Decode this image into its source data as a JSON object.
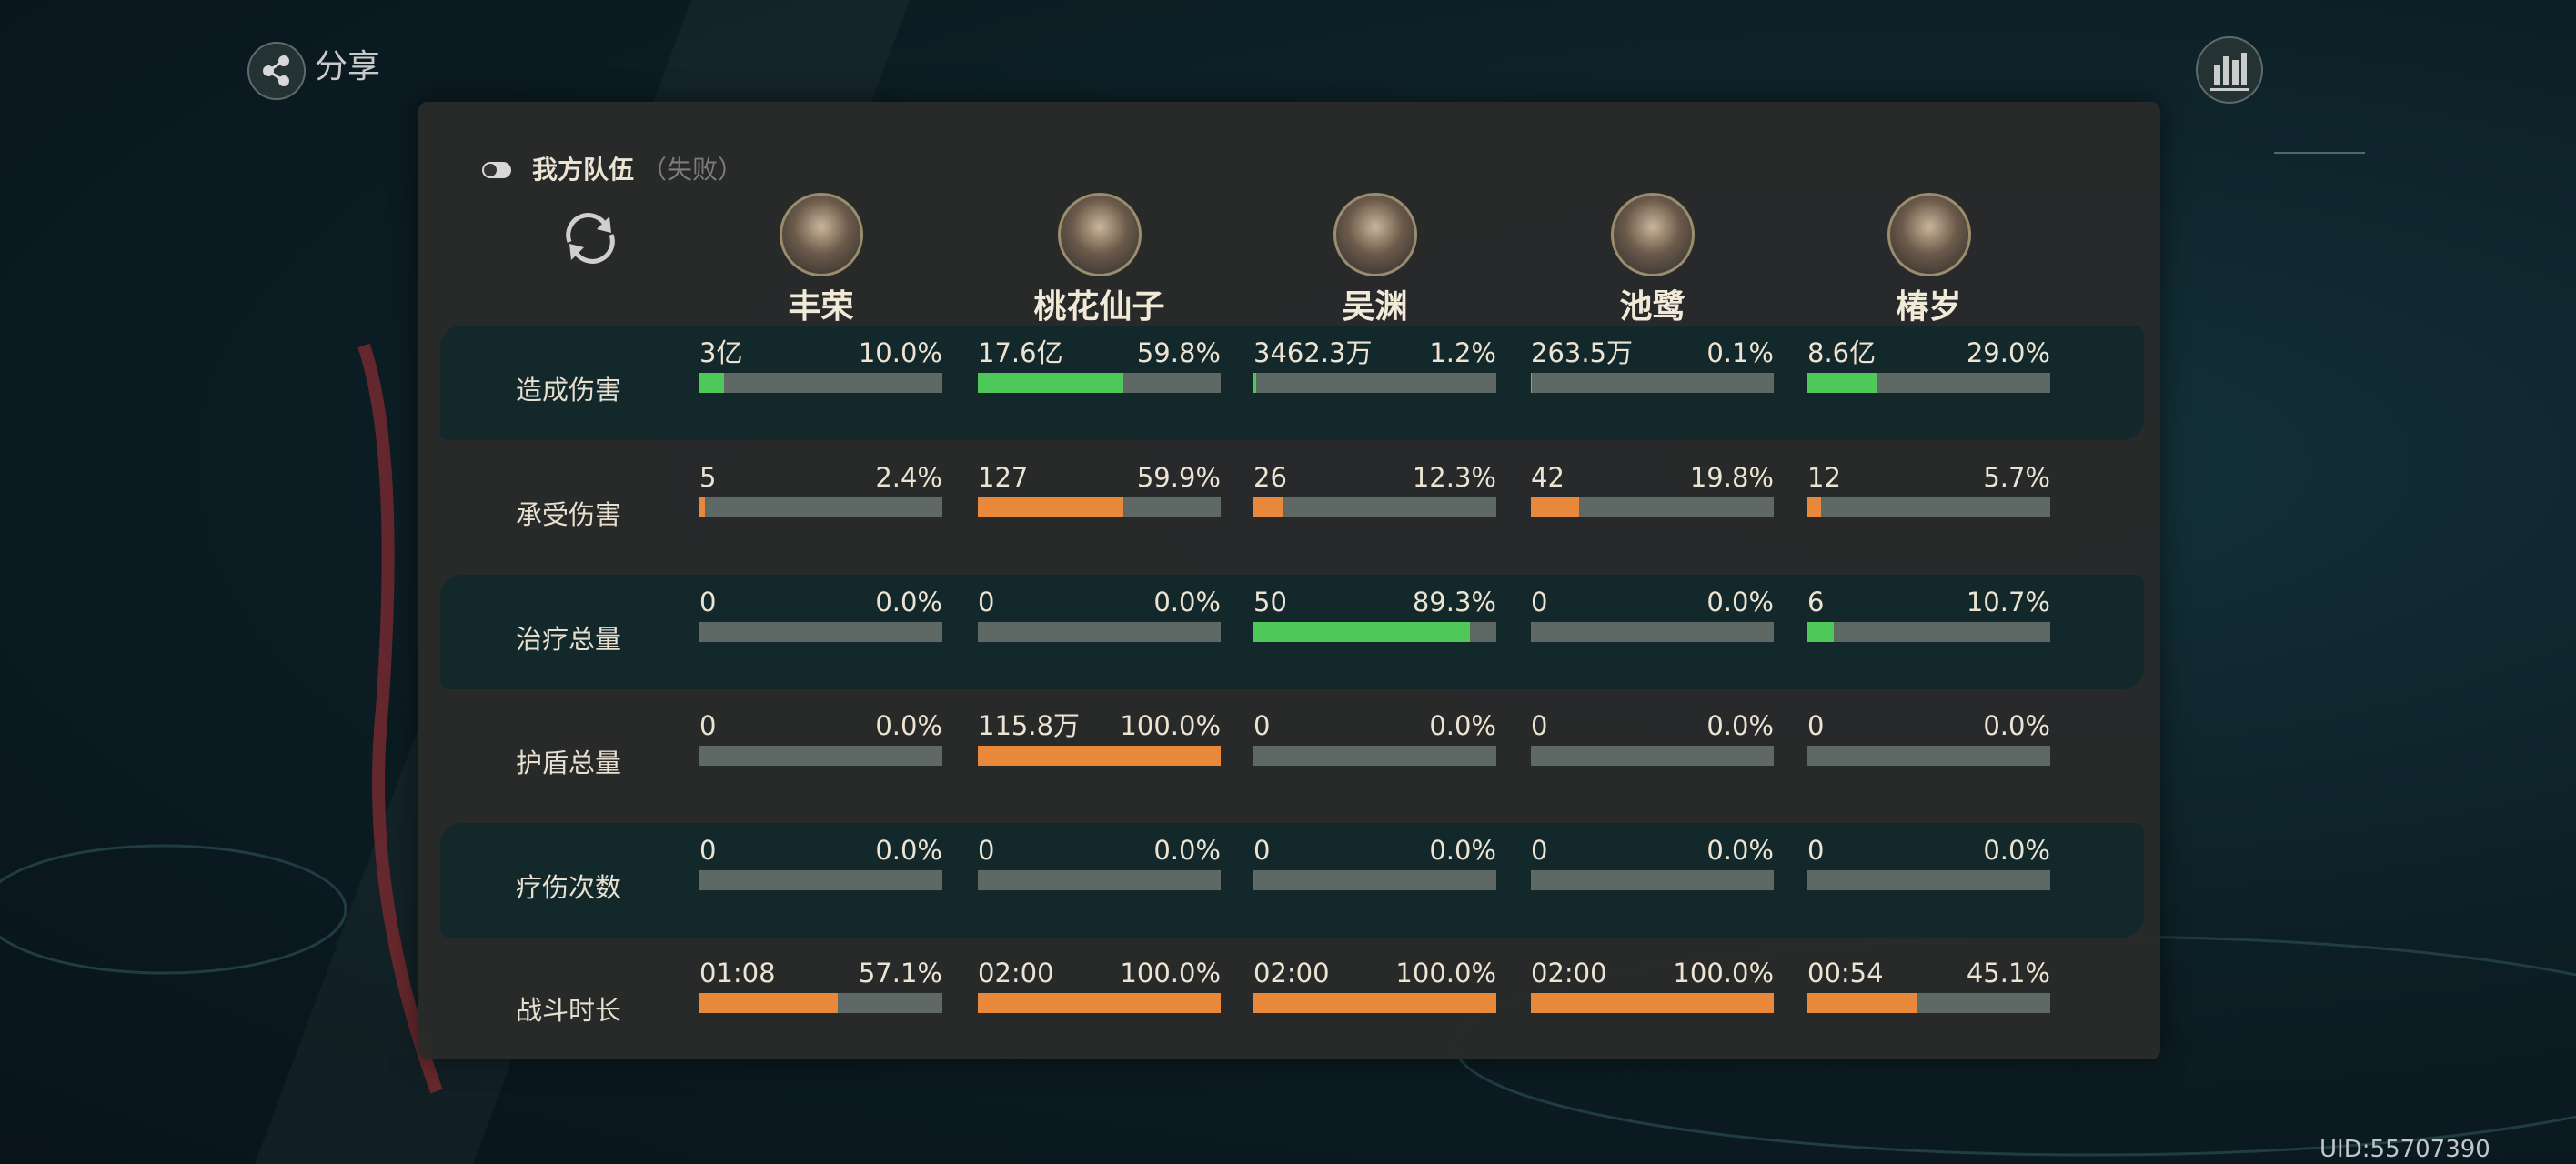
{
  "share": "分享",
  "team": {
    "title": "我方队伍",
    "status": "（失败）"
  },
  "characters": [
    "丰荣",
    "桃花仙子",
    "吴渊",
    "池鹭",
    "椿岁"
  ],
  "rows": [
    {
      "label": "造成伤害",
      "color": "#4fc85a",
      "cells": [
        {
          "value": "3亿",
          "percent": 10.0,
          "percent_label": "10.0%"
        },
        {
          "value": "17.6亿",
          "percent": 59.8,
          "percent_label": "59.8%"
        },
        {
          "value": "3462.3万",
          "percent": 1.2,
          "percent_label": "1.2%"
        },
        {
          "value": "263.5万",
          "percent": 0.1,
          "percent_label": "0.1%"
        },
        {
          "value": "8.6亿",
          "percent": 29.0,
          "percent_label": "29.0%"
        }
      ]
    },
    {
      "label": "承受伤害",
      "color": "#e8883a",
      "cells": [
        {
          "value": "5",
          "percent": 2.4,
          "percent_label": "2.4%"
        },
        {
          "value": "127",
          "percent": 59.9,
          "percent_label": "59.9%"
        },
        {
          "value": "26",
          "percent": 12.3,
          "percent_label": "12.3%"
        },
        {
          "value": "42",
          "percent": 19.8,
          "percent_label": "19.8%"
        },
        {
          "value": "12",
          "percent": 5.7,
          "percent_label": "5.7%"
        }
      ]
    },
    {
      "label": "治疗总量",
      "color": "#4fc85a",
      "cells": [
        {
          "value": "0",
          "percent": 0.0,
          "percent_label": "0.0%"
        },
        {
          "value": "0",
          "percent": 0.0,
          "percent_label": "0.0%"
        },
        {
          "value": "50",
          "percent": 89.3,
          "percent_label": "89.3%"
        },
        {
          "value": "0",
          "percent": 0.0,
          "percent_label": "0.0%"
        },
        {
          "value": "6",
          "percent": 10.7,
          "percent_label": "10.7%"
        }
      ]
    },
    {
      "label": "护盾总量",
      "color": "#e8883a",
      "cells": [
        {
          "value": "0",
          "percent": 0.0,
          "percent_label": "0.0%"
        },
        {
          "value": "115.8万",
          "percent": 100.0,
          "percent_label": "100.0%"
        },
        {
          "value": "0",
          "percent": 0.0,
          "percent_label": "0.0%"
        },
        {
          "value": "0",
          "percent": 0.0,
          "percent_label": "0.0%"
        },
        {
          "value": "0",
          "percent": 0.0,
          "percent_label": "0.0%"
        }
      ]
    },
    {
      "label": "疗伤次数",
      "color": "#e8883a",
      "cells": [
        {
          "value": "0",
          "percent": 0.0,
          "percent_label": "0.0%"
        },
        {
          "value": "0",
          "percent": 0.0,
          "percent_label": "0.0%"
        },
        {
          "value": "0",
          "percent": 0.0,
          "percent_label": "0.0%"
        },
        {
          "value": "0",
          "percent": 0.0,
          "percent_label": "0.0%"
        },
        {
          "value": "0",
          "percent": 0.0,
          "percent_label": "0.0%"
        }
      ]
    },
    {
      "label": "战斗时长",
      "color": "#e8883a",
      "cells": [
        {
          "value": "01:08",
          "percent": 57.1,
          "percent_label": "57.1%"
        },
        {
          "value": "02:00",
          "percent": 100.0,
          "percent_label": "100.0%"
        },
        {
          "value": "02:00",
          "percent": 100.0,
          "percent_label": "100.0%"
        },
        {
          "value": "02:00",
          "percent": 100.0,
          "percent_label": "100.0%"
        },
        {
          "value": "00:54",
          "percent": 45.1,
          "percent_label": "45.1%"
        }
      ]
    }
  ],
  "uid": "UID:55707390"
}
